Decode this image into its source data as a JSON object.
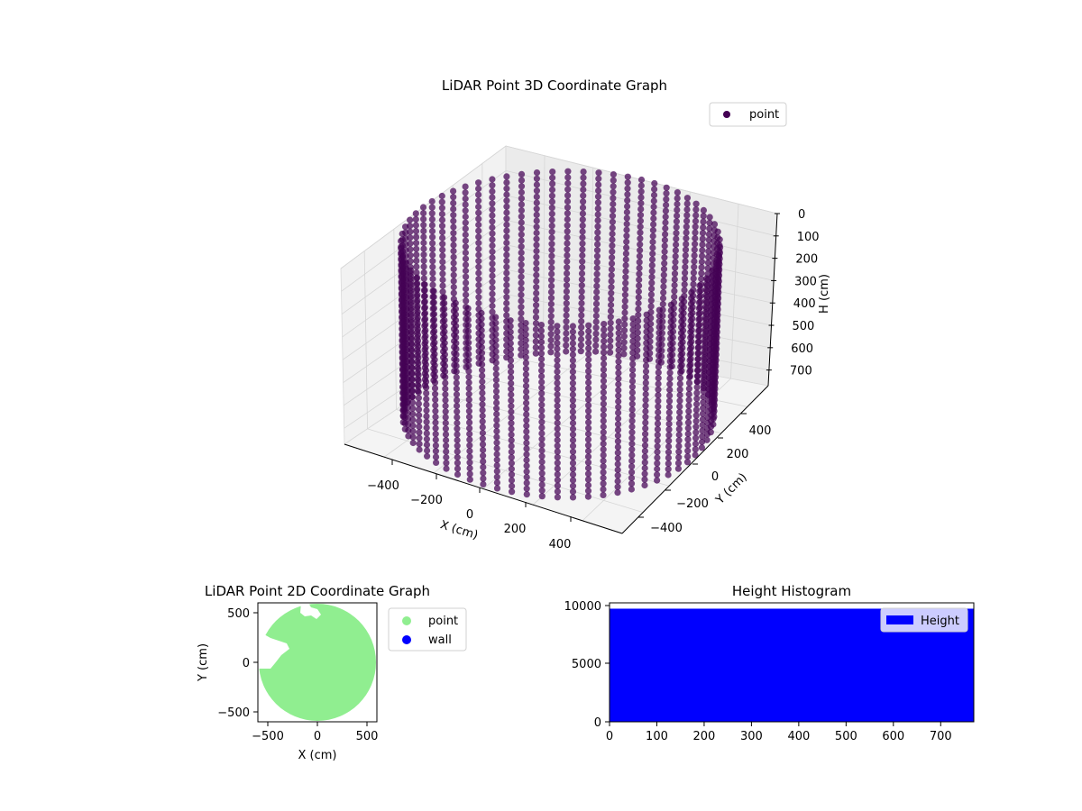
{
  "chart_data": [
    {
      "type": "scatter",
      "projection": "3d",
      "title": "LiDAR Point 3D Coordinate Graph",
      "xlabel": "X (cm)",
      "ylabel": "Y (cm)",
      "zlabel": "H (cm)",
      "x_ticks": [
        "−400",
        "−200",
        "0",
        "200",
        "400"
      ],
      "y_ticks": [
        "−400",
        "−200",
        "0",
        "200",
        "400"
      ],
      "z_ticks": [
        "0",
        "100",
        "200",
        "300",
        "400",
        "500",
        "600",
        "700"
      ],
      "xlim": [
        -560,
        560
      ],
      "ylim": [
        -560,
        560
      ],
      "zlim": [
        0,
        770
      ],
      "z_inverted": true,
      "legend": {
        "placement": "top-right",
        "entries": [
          {
            "label": "point",
            "color": "#440154"
          }
        ]
      },
      "series": [
        {
          "name": "point",
          "color": "#440154",
          "shape": "cylindrical wall of points",
          "radius": 560,
          "h_range": [
            0,
            770
          ],
          "h_step": 25,
          "x_range": [
            -560,
            560
          ],
          "y_range": [
            -560,
            560
          ]
        }
      ]
    },
    {
      "type": "scatter",
      "title": "LiDAR Point 2D Coordinate Graph",
      "xlabel": "X (cm)",
      "ylabel": "Y (cm)",
      "x_ticks": [
        "−500",
        "0",
        "500"
      ],
      "y_ticks": [
        "−500",
        "0",
        "500"
      ],
      "xlim": [
        -600,
        600
      ],
      "ylim": [
        -600,
        600
      ],
      "legend": {
        "placement": "outside-right",
        "entries": [
          {
            "label": "point",
            "color": "#90ee90"
          },
          {
            "label": "wall",
            "color": "#0000ff"
          }
        ]
      },
      "series": [
        {
          "name": "point",
          "color": "#90ee90",
          "shape": "filled disc",
          "center": [
            0,
            0
          ],
          "radius": 590
        },
        {
          "name": "wall",
          "color": "#0000ff",
          "values": []
        }
      ]
    },
    {
      "type": "bar",
      "title": "Height Histogram",
      "x_ticks": [
        "0",
        "100",
        "200",
        "300",
        "400",
        "500",
        "600",
        "700"
      ],
      "y_ticks": [
        "0",
        "5000",
        "10000"
      ],
      "xlim": [
        0,
        770
      ],
      "ylim": [
        0,
        10200
      ],
      "legend": {
        "placement": "top-right",
        "entries": [
          {
            "label": "Height",
            "color": "#0000ff"
          }
        ]
      },
      "series": [
        {
          "name": "Height",
          "color": "#0000ff",
          "bin_range": [
            0,
            770
          ],
          "value": 9700
        }
      ]
    }
  ]
}
